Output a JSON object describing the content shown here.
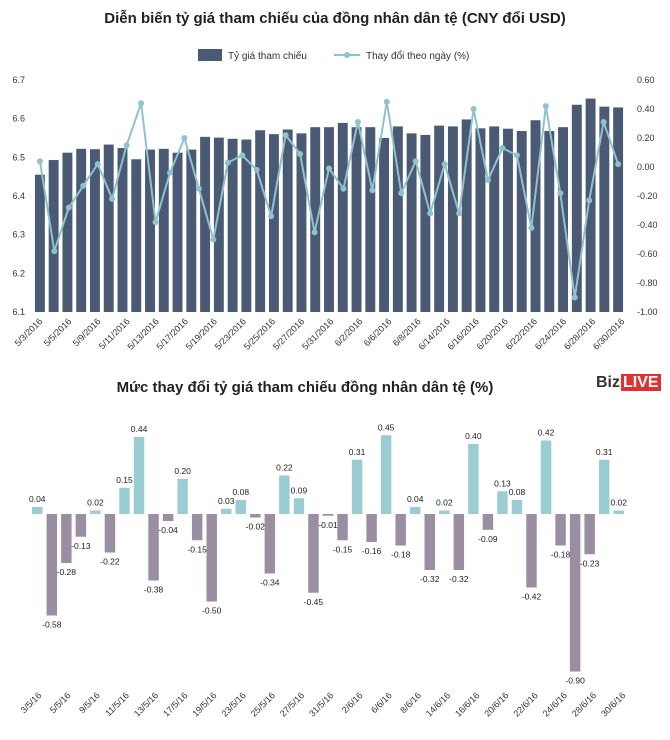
{
  "titles": {
    "top": "Diễn biến tỷ giá tham chiếu của đồng nhân dân tệ (CNY đổi USD)",
    "bottom": "Mức thay đổi tỷ giá tham chiếu đồng nhân dân tệ (%)"
  },
  "logo": {
    "part1": "Biz",
    "part2": "LIVE"
  },
  "colors": {
    "bar": "#4a5a74",
    "line": "#8fc2cc",
    "positive": "#99cdd3",
    "negative": "#9b8ea3"
  },
  "chart_data": [
    {
      "type": "bar",
      "legend": [
        "Tỷ giá tham chiếu",
        "Thay đổi theo ngày (%)"
      ],
      "legend_position": "top-center",
      "x_tick_labels": [
        "5/3/2016",
        "5/5/2016",
        "5/9/2016",
        "5/11/2016",
        "5/13/2016",
        "5/17/2016",
        "5/19/2016",
        "5/23/2016",
        "5/25/2016",
        "5/27/2016",
        "5/31/2016",
        "6/2/2016",
        "6/6/2016",
        "6/8/2016",
        "6/14/2016",
        "6/16/2016",
        "6/20/2016",
        "6/22/2016",
        "6/24/2016",
        "6/28/2016",
        "6/30/2016"
      ],
      "left_axis": {
        "ticks": [
          "6.1",
          "6.2",
          "6.3",
          "6.4",
          "6.5",
          "6.6",
          "6.7"
        ],
        "ylim": [
          6.1,
          6.7
        ]
      },
      "right_axis": {
        "ticks": [
          "-1.00",
          "-0.80",
          "-0.60",
          "-0.40",
          "-0.20",
          "0.00",
          "0.20",
          "0.40",
          "0.60"
        ],
        "ylim": [
          -1.0,
          0.6
        ]
      },
      "series": [
        {
          "name": "Tỷ giá tham chiếu",
          "kind": "bar",
          "axis": "left",
          "values": [
            6.455,
            6.493,
            6.512,
            6.522,
            6.521,
            6.533,
            6.524,
            6.495,
            6.52,
            6.522,
            6.512,
            6.52,
            6.553,
            6.551,
            6.548,
            6.546,
            6.57,
            6.56,
            6.572,
            6.562,
            6.578,
            6.578,
            6.589,
            6.578,
            6.578,
            6.55,
            6.58,
            6.562,
            6.558,
            6.582,
            6.58,
            6.598,
            6.575,
            6.58,
            6.574,
            6.568,
            6.596,
            6.568,
            6.578,
            6.636,
            6.652,
            6.631,
            6.629
          ]
        },
        {
          "name": "Thay đổi theo ngày (%)",
          "kind": "line",
          "axis": "right",
          "values": [
            0.04,
            -0.58,
            -0.28,
            -0.13,
            0.02,
            -0.22,
            0.15,
            0.44,
            -0.38,
            -0.04,
            0.2,
            -0.15,
            -0.5,
            0.03,
            0.08,
            -0.02,
            -0.34,
            0.22,
            0.09,
            -0.45,
            -0.01,
            -0.15,
            0.31,
            -0.16,
            0.45,
            -0.18,
            0.04,
            -0.32,
            0.02,
            -0.32,
            0.4,
            -0.09,
            0.13,
            0.08,
            -0.42,
            0.42,
            -0.18,
            -0.9,
            -0.23,
            0.31,
            0.02
          ]
        }
      ]
    },
    {
      "type": "bar",
      "x_tick_labels": [
        "3/5/16",
        "5/5/16",
        "9/5/16",
        "11/5/16",
        "13/5/16",
        "17/5/16",
        "19/5/16",
        "23/5/16",
        "25/5/16",
        "27/5/16",
        "31/5/16",
        "2/6/16",
        "6/6/16",
        "8/6/16",
        "14/6/16",
        "16/6/16",
        "20/6/16",
        "22/6/16",
        "24/6/16",
        "28/6/16",
        "30/6/16"
      ],
      "values": [
        0.04,
        -0.58,
        -0.28,
        -0.13,
        0.02,
        -0.22,
        0.15,
        0.44,
        -0.38,
        -0.04,
        0.2,
        -0.15,
        -0.5,
        0.03,
        0.08,
        -0.02,
        -0.34,
        0.22,
        0.09,
        -0.45,
        -0.01,
        -0.15,
        0.31,
        -0.16,
        0.45,
        -0.18,
        0.04,
        -0.32,
        0.02,
        -0.32,
        0.4,
        -0.09,
        0.13,
        0.08,
        -0.42,
        0.42,
        -0.18,
        -0.9,
        -0.23,
        0.31,
        0.02
      ],
      "labels": [
        "0.04",
        "-0.58",
        "-0.28",
        "-0.13",
        "0.02",
        "-0.22",
        "0.15",
        "0.44",
        "-0.38",
        "-0.04",
        "0.20",
        "-0.15",
        "-0.50",
        "0.03",
        "0.08",
        "-0.02",
        "-0.34",
        "0.22",
        "0.09",
        "-0.45",
        "-0.01",
        "-0.15",
        "0.31",
        "-0.16",
        "0.45",
        "-0.18",
        "0.04",
        "-0.32",
        "0.02",
        "-0.32",
        "0.40",
        "-0.09",
        "0.13",
        "0.08",
        "-0.42",
        "0.42",
        "-0.18",
        "-0.90",
        "-0.23",
        "0.31",
        "0.02"
      ]
    }
  ]
}
